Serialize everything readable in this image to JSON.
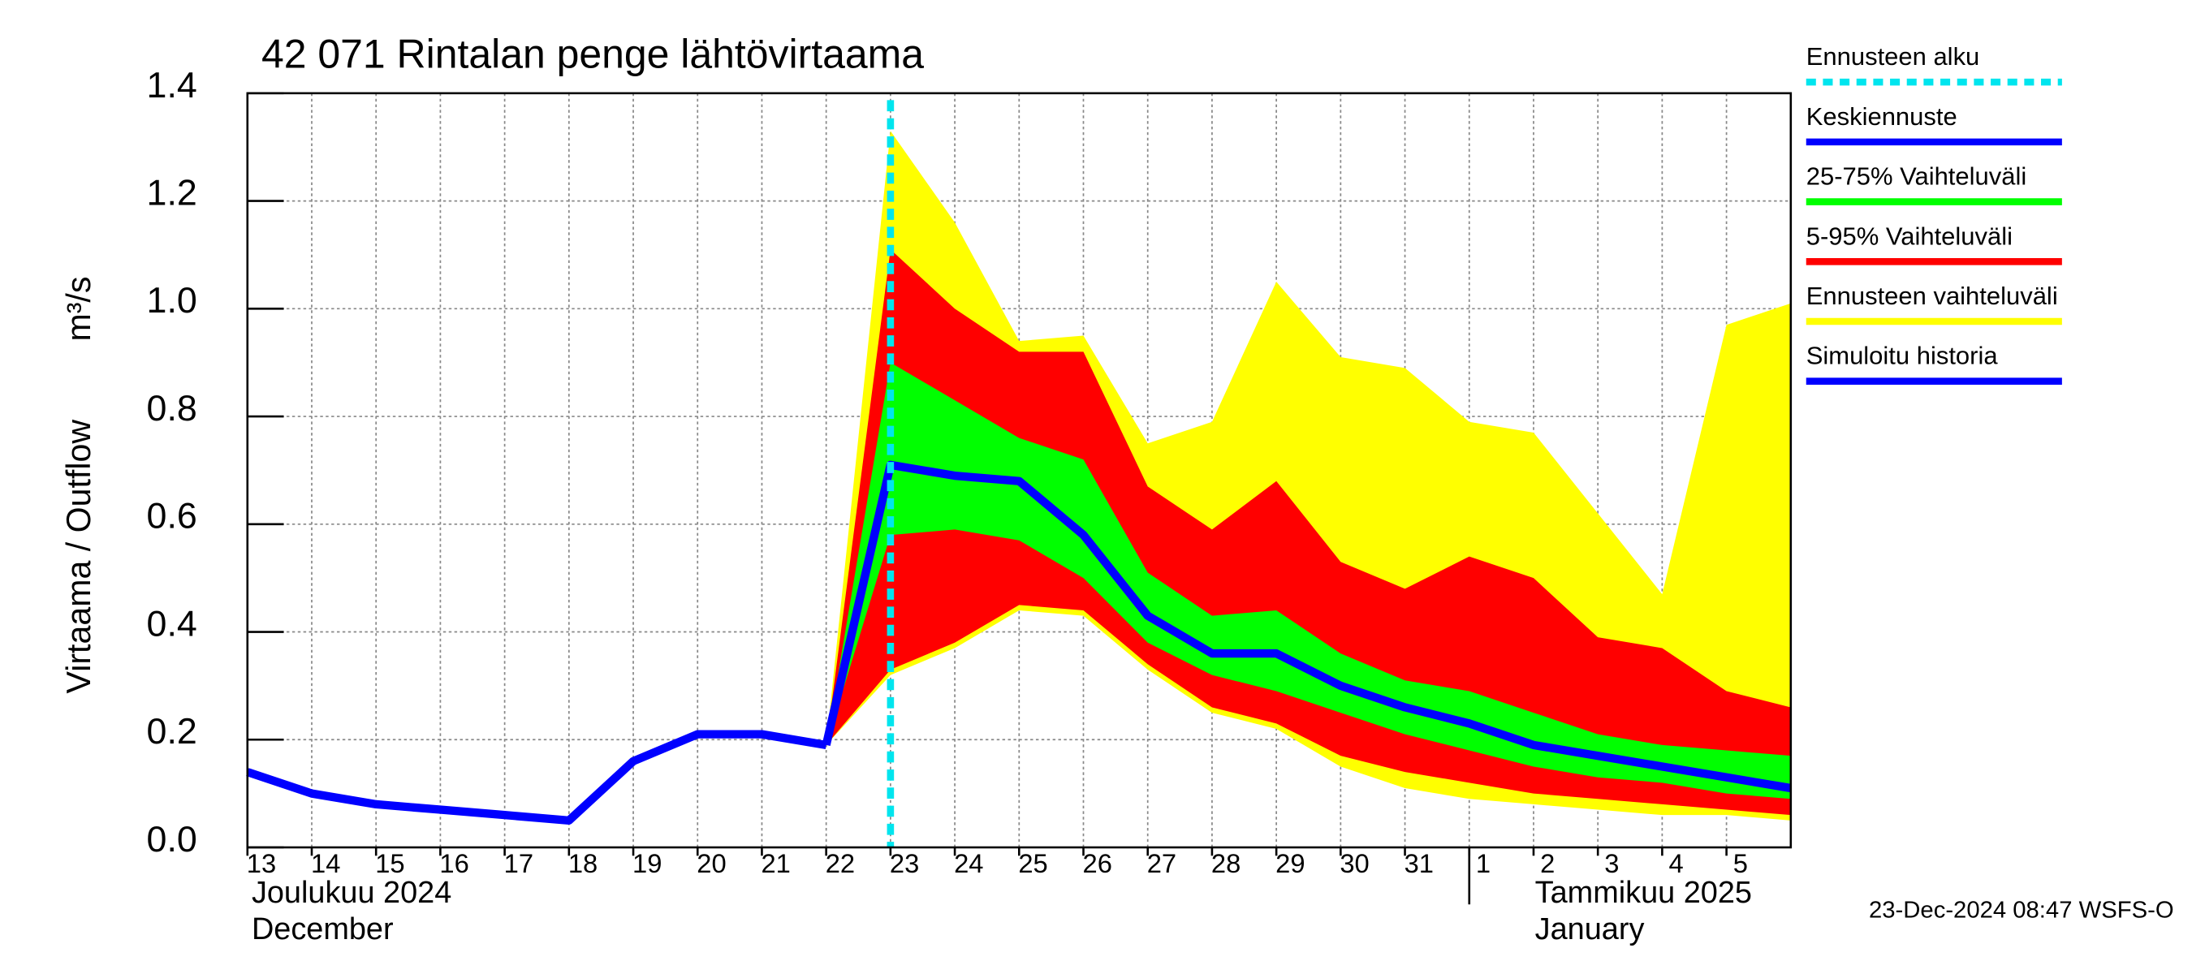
{
  "chart_data": {
    "type": "forecast-band",
    "title": "42 071 Rintalan penge lähtövirtaama",
    "ylabel": "Virtaama / Outflow",
    "yunit": "m³/s",
    "month_labels": [
      "Joulukuu  2024",
      "December",
      "Tammikuu  2025",
      "January"
    ],
    "footer": "23-Dec-2024 08:47 WSFS-O",
    "xlim": [
      0,
      24
    ],
    "xticks": [
      {
        "value": 0,
        "label": "13"
      },
      {
        "value": 1,
        "label": "14"
      },
      {
        "value": 2,
        "label": "15"
      },
      {
        "value": 3,
        "label": "16"
      },
      {
        "value": 4,
        "label": "17"
      },
      {
        "value": 5,
        "label": "18"
      },
      {
        "value": 6,
        "label": "19"
      },
      {
        "value": 7,
        "label": "20"
      },
      {
        "value": 8,
        "label": "21"
      },
      {
        "value": 9,
        "label": "22"
      },
      {
        "value": 10,
        "label": "23"
      },
      {
        "value": 11,
        "label": "24"
      },
      {
        "value": 12,
        "label": "25"
      },
      {
        "value": 13,
        "label": "26"
      },
      {
        "value": 14,
        "label": "27"
      },
      {
        "value": 15,
        "label": "28"
      },
      {
        "value": 16,
        "label": "29"
      },
      {
        "value": 17,
        "label": "30"
      },
      {
        "value": 18,
        "label": "31"
      },
      {
        "value": 19,
        "label": "1"
      },
      {
        "value": 20,
        "label": "2"
      },
      {
        "value": 21,
        "label": "3"
      },
      {
        "value": 22,
        "label": "4"
      },
      {
        "value": 23,
        "label": "5"
      }
    ],
    "month_break": 19,
    "ylim": [
      0,
      1.4
    ],
    "yticks": [
      {
        "value": 0,
        "label": "0.0"
      },
      0.2,
      0.4,
      0.6,
      0.8,
      {
        "value": 1,
        "label": "1.0"
      },
      1.2,
      1.4
    ],
    "grid": true,
    "forecast_start": {
      "name": "Ennusteen alku",
      "x": 10,
      "color": "#00e5ee"
    },
    "series": [
      {
        "name": "Keskiennuste",
        "kind": "line",
        "color": "#0000ff",
        "x": [
          9,
          10,
          11,
          12,
          13,
          14,
          15,
          16,
          17,
          18,
          19,
          20,
          21,
          22,
          23,
          24
        ],
        "values": [
          0.19,
          0.71,
          0.69,
          0.68,
          0.58,
          0.43,
          0.36,
          0.36,
          0.3,
          0.26,
          0.23,
          0.19,
          0.17,
          0.15,
          0.13,
          0.11
        ]
      },
      {
        "name": "25-75% Vaihteluväli",
        "kind": "band",
        "color": "#00ff00",
        "x": [
          9,
          10,
          11,
          12,
          13,
          14,
          15,
          16,
          17,
          18,
          19,
          20,
          21,
          22,
          23,
          24
        ],
        "high": [
          0.19,
          0.9,
          0.83,
          0.76,
          0.72,
          0.51,
          0.43,
          0.44,
          0.36,
          0.31,
          0.29,
          0.25,
          0.21,
          0.19,
          0.18,
          0.17
        ],
        "low": [
          0.19,
          0.58,
          0.59,
          0.57,
          0.5,
          0.38,
          0.32,
          0.29,
          0.25,
          0.21,
          0.18,
          0.15,
          0.13,
          0.12,
          0.1,
          0.09
        ]
      },
      {
        "name": "5-95% Vaihteluväli",
        "kind": "band",
        "color": "#ff0000",
        "x": [
          9,
          10,
          11,
          12,
          13,
          14,
          15,
          16,
          17,
          18,
          19,
          20,
          21,
          22,
          23,
          24
        ],
        "high": [
          0.19,
          1.11,
          1.0,
          0.92,
          0.92,
          0.67,
          0.59,
          0.68,
          0.53,
          0.48,
          0.54,
          0.5,
          0.39,
          0.37,
          0.29,
          0.26
        ],
        "low": [
          0.19,
          0.33,
          0.38,
          0.45,
          0.44,
          0.34,
          0.26,
          0.23,
          0.17,
          0.14,
          0.12,
          0.1,
          0.09,
          0.08,
          0.07,
          0.06
        ]
      },
      {
        "name": "Ennusteen vaihteluväli",
        "kind": "band",
        "color": "#ffff00",
        "x": [
          9,
          10,
          11,
          12,
          13,
          14,
          15,
          16,
          17,
          18,
          19,
          20,
          21,
          22,
          23,
          24
        ],
        "high": [
          0.19,
          1.33,
          1.16,
          0.94,
          0.95,
          0.75,
          0.79,
          1.05,
          0.91,
          0.89,
          0.79,
          0.77,
          0.62,
          0.47,
          0.97,
          1.01
        ],
        "low": [
          0.19,
          0.32,
          0.37,
          0.44,
          0.43,
          0.33,
          0.25,
          0.22,
          0.15,
          0.11,
          0.09,
          0.08,
          0.07,
          0.06,
          0.06,
          0.05
        ]
      },
      {
        "name": "Simuloitu historia",
        "kind": "line",
        "color": "#0000ff",
        "x": [
          0,
          1,
          2,
          3,
          4,
          5,
          6,
          7,
          8,
          9
        ],
        "values": [
          0.14,
          0.1,
          0.08,
          0.07,
          0.06,
          0.05,
          0.16,
          0.21,
          0.21,
          0.19
        ]
      }
    ]
  }
}
